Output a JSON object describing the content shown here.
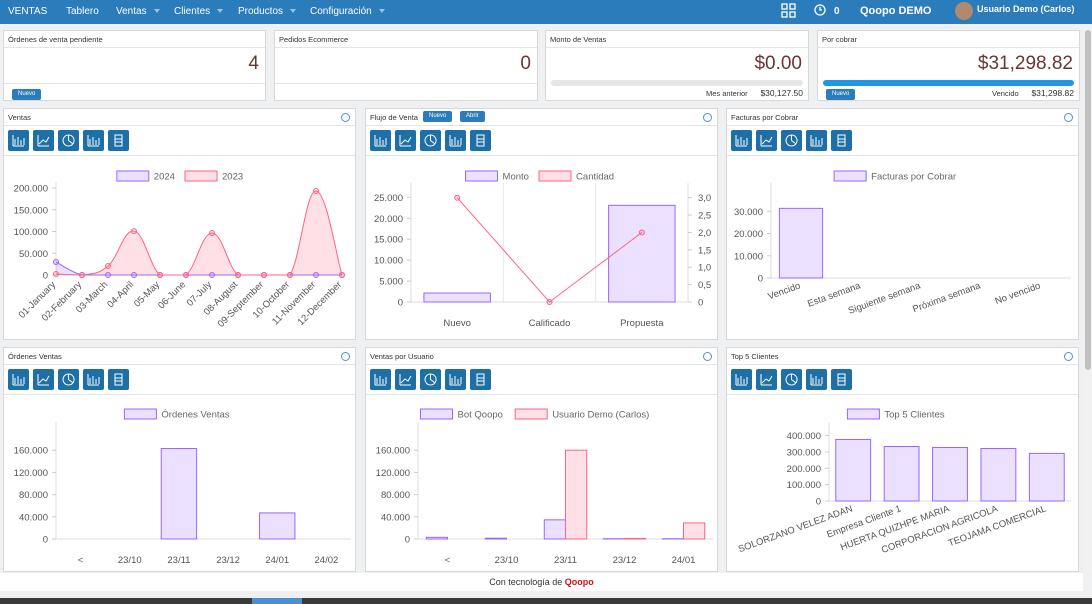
{
  "navbar": {
    "brand": "VENTAS",
    "menu": [
      "Tablero",
      "Ventas",
      "Clientes",
      "Productos",
      "Configuración"
    ],
    "counter": "0",
    "company": "Qoopo DEMO",
    "user": "Usuario Demo (Carlos)"
  },
  "kpis": [
    {
      "title": "Órdenes de venta pendiente",
      "value": "4",
      "button": "Nuevo"
    },
    {
      "title": "Pedidos Ecommerce",
      "value": "0"
    },
    {
      "title": "Monto de Ventas",
      "value": "$0.00",
      "note": "Mes anterior",
      "note_value": "$30,127.50"
    },
    {
      "title": "Por cobrar",
      "value": "$31,298.82",
      "button": "Nuevo",
      "note": "Vencido",
      "note_value": "$31,298.82"
    }
  ],
  "panels": [
    {
      "title": "Ventas",
      "chart": {
        "type": "line",
        "categories": [
          "01-January",
          "02-February",
          "03-March",
          "04-April",
          "05-May",
          "06-June",
          "07-July",
          "08-August",
          "09-September",
          "10-October",
          "11-November",
          "12-December"
        ],
        "series": [
          {
            "name": "2024",
            "color": "#9966ff",
            "values": [
              30000,
              0,
              0,
              0,
              0,
              0,
              0,
              0,
              0,
              0,
              0,
              0
            ]
          },
          {
            "name": "2023",
            "color": "#ff6384",
            "values": [
              2300,
              0,
              20700,
              101000,
              0,
              0,
              96500,
              0,
              0,
              0,
              193000,
              0
            ]
          }
        ],
        "ylim": [
          0,
          200000
        ],
        "yticks": [
          0,
          {
            "value": 50000,
            "label": "50.000"
          },
          {
            "value": 100000,
            "label": "100.000"
          },
          {
            "value": 150000,
            "label": "150.000"
          },
          {
            "value": 200000,
            "label": "200.000"
          }
        ]
      }
    },
    {
      "title": "Flujo de Venta",
      "buttons": [
        "Nuevo",
        "Abrir"
      ],
      "chart": {
        "type": "bar",
        "categories": [
          "Nuevo",
          "Calificado",
          "Propuesta"
        ],
        "series": [
          {
            "name": "Monto",
            "color": "#9966ff",
            "values": [
              2150,
              0,
              23100
            ]
          },
          {
            "name": "Cantidad",
            "type": "line",
            "axis": "y2",
            "color": "#ff6384",
            "values": [
              3,
              0,
              2
            ]
          }
        ],
        "ylim": [
          0,
          27000
        ],
        "yticks": [
          0,
          {
            "value": 5000,
            "label": "5.000"
          },
          {
            "value": 10000,
            "label": "10.000"
          },
          {
            "value": 15000,
            "label": "15.000"
          },
          {
            "value": 20000,
            "label": "20.000"
          },
          {
            "value": 25000,
            "label": "25.000"
          }
        ],
        "y2lim": [
          0,
          3.25
        ],
        "y2ticks": [
          0,
          {
            "value": 0.5,
            "label": "0,5"
          },
          {
            "value": 1,
            "label": "1,0"
          },
          {
            "value": 1.5,
            "label": "1,5"
          },
          {
            "value": 2,
            "label": "2,0"
          },
          {
            "value": 2.5,
            "label": "2,5"
          },
          {
            "value": 3,
            "label": "3,0"
          }
        ]
      }
    },
    {
      "title": "Facturas por Cobrar",
      "chart": {
        "type": "bar",
        "categories": [
          "Vencido",
          "Esta semana",
          "Siguiente semana",
          "Próxima semana",
          "No vencido"
        ],
        "series": [
          {
            "name": "Facturas por Cobrar",
            "color": "#9966ff",
            "values": [
              31298.82,
              0,
              0,
              0,
              0
            ]
          }
        ],
        "ylim": [
          0,
          40000
        ],
        "yticks": [
          0,
          {
            "value": 10000,
            "label": "10.000"
          },
          {
            "value": 20000,
            "label": "20.000"
          },
          {
            "value": 30000,
            "label": "30.000"
          }
        ]
      }
    },
    {
      "title": "Órdenes Ventas",
      "chart": {
        "type": "bar",
        "categories": [
          "<",
          "23/10",
          "23/11",
          "23/12",
          "24/01",
          "24/02"
        ],
        "series": [
          {
            "name": "Órdenes Ventas",
            "color": "#9966ff",
            "values": [
              0,
              0,
              163000,
              0,
              47000,
              0
            ]
          }
        ],
        "ylim": [
          0,
          200000
        ],
        "yticks": [
          0,
          {
            "value": 40000,
            "label": "40.000"
          },
          {
            "value": 80000,
            "label": "80.000"
          },
          {
            "value": 120000,
            "label": "120.000"
          },
          {
            "value": 160000,
            "label": "160.000"
          }
        ]
      }
    },
    {
      "title": "Ventas por Usuario",
      "chart": {
        "type": "bar",
        "categories": [
          "<",
          "23/10",
          "23/11",
          "23/12",
          "24/01"
        ],
        "series": [
          {
            "name": "Bot Qoopo",
            "color": "#9966ff",
            "values": [
              3000,
              1500,
              34500,
              500,
              500
            ]
          },
          {
            "name": "Usuario Demo (Carlos)",
            "color": "#ff6384",
            "values": [
              0,
              0,
              160000,
              1000,
              29000
            ]
          }
        ],
        "ylim": [
          0,
          200000
        ],
        "yticks": [
          0,
          {
            "value": 40000,
            "label": "40.000"
          },
          {
            "value": 80000,
            "label": "80.000"
          },
          {
            "value": 120000,
            "label": "120.000"
          },
          {
            "value": 160000,
            "label": "160.000"
          }
        ]
      }
    },
    {
      "title": "Top 5 Clientes",
      "chart": {
        "type": "bar",
        "categories": [
          "SOLORZANO VELEZ ADAN",
          "Empresa Cliente 1",
          "HUERTA QUIZHPE MARIA",
          "CORPORACION AGRICOLA",
          "TEOJAMA COMERCIAL"
        ],
        "series": [
          {
            "name": "Top 5 Clientes",
            "color": "#9966ff",
            "values": [
              376000,
              333000,
              327000,
              321000,
              291000
            ]
          }
        ],
        "ylim": [
          0,
          440000
        ],
        "yticks": [
          0,
          {
            "value": 100000,
            "label": "100.000"
          },
          {
            "value": 200000,
            "label": "200.000"
          },
          {
            "value": 300000,
            "label": "300.000"
          },
          {
            "value": 400000,
            "label": "400.000"
          }
        ]
      }
    }
  ],
  "footer": {
    "text": "Con tecnología de",
    "brand": "Qoopo"
  }
}
